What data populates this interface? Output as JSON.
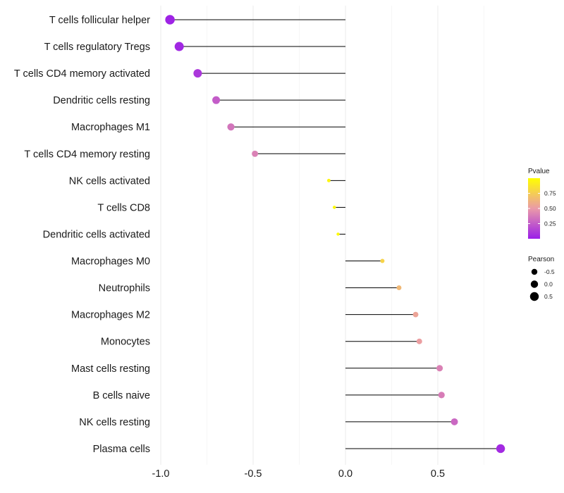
{
  "chart_data": {
    "type": "lollipop",
    "title": "",
    "xlabel": "",
    "ylabel": "",
    "xlim": [
      -1.0,
      0.85
    ],
    "x_ticks": [
      -1.0,
      -0.5,
      0.0,
      0.5
    ],
    "x_tick_labels": [
      "-1.0",
      "-0.5",
      "0.0",
      "0.5"
    ],
    "baseline": 0,
    "grid": true,
    "categories": [
      "T cells follicular helper",
      "T cells regulatory  Tregs",
      "T cells CD4 memory activated",
      "Dendritic cells resting",
      "Macrophages M1",
      "T cells CD4 memory resting",
      "NK cells activated",
      "T cells CD8",
      "Dendritic cells activated",
      "Macrophages M0",
      "Neutrophils",
      "Macrophages M2",
      "Monocytes",
      "Mast cells resting",
      "B cells naive",
      "NK cells resting",
      "Plasma cells"
    ],
    "pearson": [
      -0.95,
      -0.9,
      -0.8,
      -0.7,
      -0.62,
      -0.49,
      -0.09,
      -0.06,
      -0.04,
      0.2,
      0.29,
      0.38,
      0.4,
      0.51,
      0.52,
      0.59,
      0.84
    ],
    "pvalue": [
      0.02,
      0.04,
      0.1,
      0.25,
      0.35,
      0.4,
      0.95,
      0.97,
      0.98,
      0.78,
      0.65,
      0.55,
      0.52,
      0.4,
      0.38,
      0.3,
      0.05
    ],
    "legend": {
      "pvalue": {
        "title": "Pvalue",
        "ticks": [
          0.75,
          0.5,
          0.25
        ],
        "tick_labels": [
          "0.75",
          "0.50",
          "0.25"
        ],
        "range": [
          0.0,
          1.0
        ],
        "low_color": "#9b1ee8",
        "high_color": "#ffff00"
      },
      "pearson": {
        "title": "Pearson",
        "values": [
          -0.5,
          0.0,
          0.5
        ],
        "labels": [
          "-0.5",
          "0.0",
          "0.5"
        ]
      },
      "placement": "right"
    }
  }
}
